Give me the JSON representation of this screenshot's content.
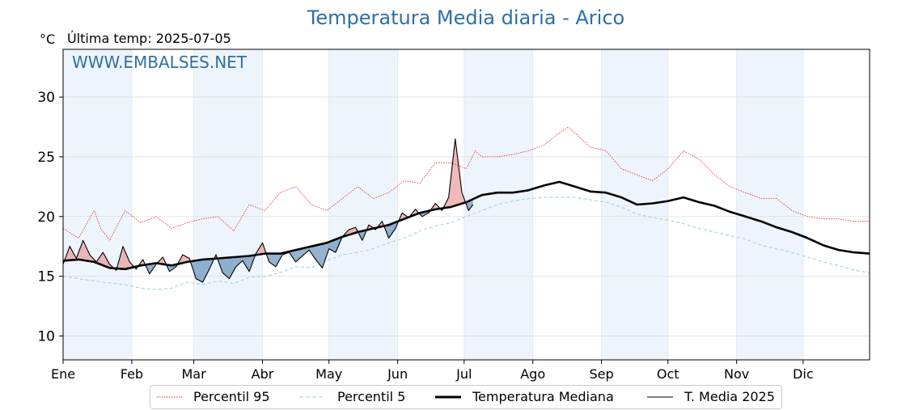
{
  "title": "Temperatura Media diaria - Arico",
  "unit_label": "°C",
  "last_temp": "Última temp: 2025-07-05",
  "watermark": "WWW.EMBALSES.NET",
  "colors": {
    "title": "#2e6fa5",
    "p95": "#e0201c",
    "p5": "#9fd1e4",
    "median": "#000000",
    "current": "#000000",
    "above_fill": "#e88a8a",
    "below_fill": "#5a8ab6",
    "band": "#eef4fb"
  },
  "chart_data": {
    "type": "line",
    "title": "Temperatura Media diaria - Arico",
    "ylabel": "°C",
    "xlabel": "",
    "ylim": [
      8,
      34
    ],
    "yticks": [
      "10",
      "15",
      "20",
      "25",
      "30"
    ],
    "month_ticks": [
      "Ene",
      "Feb",
      "Mar",
      "Abr",
      "May",
      "Jun",
      "Jul",
      "Ago",
      "Sep",
      "Oct",
      "Nov",
      "Dic"
    ],
    "grid": true,
    "legend_position": "bottom",
    "series": [
      {
        "name": "Percentil 95",
        "style": "dotted-red",
        "x": [
          1,
          8,
          15,
          18,
          22,
          29,
          36,
          43,
          50,
          57,
          64,
          71,
          78,
          85,
          92,
          99,
          106,
          113,
          120,
          127,
          134,
          141,
          148,
          155,
          162,
          169,
          176,
          183,
          187,
          190,
          197,
          204,
          211,
          218,
          225,
          229,
          232,
          239,
          246,
          253,
          260,
          267,
          274,
          281,
          288,
          295,
          302,
          309,
          316,
          323,
          330,
          337,
          344,
          351,
          358,
          365
        ],
        "values": [
          19.0,
          18.2,
          20.5,
          19.0,
          18.0,
          20.5,
          19.5,
          20.0,
          19.0,
          19.5,
          19.8,
          20.0,
          18.8,
          21.0,
          20.5,
          22.0,
          22.5,
          21.0,
          20.5,
          21.5,
          22.5,
          21.5,
          22.0,
          23.0,
          22.8,
          24.5,
          24.5,
          24.0,
          25.5,
          25.0,
          25.0,
          25.2,
          25.5,
          26.0,
          27.0,
          27.5,
          27.0,
          25.8,
          25.5,
          24.0,
          23.5,
          23.0,
          24.0,
          25.5,
          24.8,
          23.5,
          22.5,
          22.0,
          21.5,
          21.5,
          20.5,
          20.0,
          19.8,
          19.8,
          19.6,
          19.6
        ]
      },
      {
        "name": "Percentil 5",
        "style": "dashed-blue",
        "x": [
          1,
          15,
          29,
          36,
          43,
          50,
          57,
          64,
          71,
          78,
          85,
          92,
          99,
          106,
          113,
          120,
          127,
          134,
          141,
          148,
          155,
          162,
          169,
          176,
          183,
          190,
          197,
          204,
          211,
          218,
          225,
          232,
          239,
          246,
          253,
          260,
          267,
          274,
          281,
          288,
          295,
          302,
          309,
          316,
          323,
          330,
          337,
          344,
          351,
          358,
          365
        ],
        "values": [
          15.0,
          14.6,
          14.3,
          14.0,
          13.9,
          14.0,
          14.5,
          14.3,
          14.6,
          14.4,
          14.9,
          15.0,
          15.3,
          15.8,
          15.7,
          16.3,
          16.8,
          17.0,
          17.3,
          17.8,
          18.2,
          18.8,
          19.2,
          19.5,
          20.0,
          20.5,
          21.0,
          21.3,
          21.5,
          21.6,
          21.6,
          21.6,
          21.4,
          21.2,
          20.8,
          20.2,
          19.9,
          19.7,
          19.4,
          19.0,
          18.7,
          18.4,
          18.1,
          17.6,
          17.3,
          17.0,
          16.6,
          16.2,
          15.9,
          15.5,
          15.3
        ]
      },
      {
        "name": "Temperatura Mediana",
        "style": "thick-black",
        "x": [
          1,
          8,
          15,
          22,
          29,
          36,
          43,
          50,
          57,
          64,
          71,
          78,
          85,
          92,
          99,
          106,
          113,
          120,
          127,
          134,
          141,
          148,
          155,
          162,
          169,
          176,
          183,
          190,
          197,
          204,
          211,
          218,
          225,
          232,
          239,
          246,
          253,
          260,
          267,
          274,
          281,
          288,
          295,
          302,
          309,
          316,
          323,
          330,
          337,
          344,
          351,
          358,
          365
        ],
        "values": [
          16.3,
          16.4,
          16.2,
          15.7,
          15.6,
          15.9,
          16.1,
          15.9,
          16.2,
          16.4,
          16.5,
          16.6,
          16.7,
          16.9,
          16.9,
          17.2,
          17.5,
          17.8,
          18.3,
          18.7,
          19.0,
          19.3,
          19.8,
          20.3,
          20.6,
          20.8,
          21.2,
          21.8,
          22.0,
          22.0,
          22.2,
          22.6,
          22.9,
          22.5,
          22.1,
          22.0,
          21.6,
          21.0,
          21.1,
          21.3,
          21.6,
          21.2,
          20.9,
          20.4,
          20.0,
          19.6,
          19.1,
          18.7,
          18.2,
          17.6,
          17.2,
          17.0,
          16.9
        ]
      },
      {
        "name": "T. Media 2025",
        "style": "thin-black",
        "x": [
          1,
          4,
          7,
          10,
          13,
          16,
          19,
          22,
          25,
          28,
          31,
          34,
          37,
          40,
          43,
          46,
          49,
          52,
          55,
          58,
          61,
          64,
          67,
          70,
          73,
          76,
          79,
          82,
          85,
          88,
          91,
          94,
          97,
          100,
          103,
          106,
          109,
          112,
          115,
          118,
          121,
          124,
          127,
          130,
          133,
          136,
          139,
          142,
          145,
          148,
          151,
          154,
          157,
          160,
          163,
          166,
          169,
          172,
          175,
          178,
          181,
          184,
          186
        ],
        "values": [
          16.0,
          17.5,
          16.5,
          18.0,
          16.8,
          16.2,
          17.0,
          16.0,
          15.5,
          17.5,
          16.2,
          15.6,
          16.4,
          15.2,
          16.0,
          16.6,
          15.4,
          15.8,
          16.8,
          16.5,
          14.8,
          14.5,
          15.6,
          16.8,
          15.3,
          14.8,
          15.8,
          16.3,
          15.4,
          16.9,
          17.8,
          16.2,
          15.8,
          16.8,
          17.0,
          16.2,
          16.7,
          17.2,
          16.4,
          15.7,
          17.3,
          17.0,
          18.3,
          18.9,
          19.1,
          18.0,
          19.3,
          18.9,
          19.6,
          18.2,
          19.0,
          20.3,
          19.9,
          20.6,
          20.0,
          20.3,
          21.1,
          20.5,
          21.6,
          26.5,
          22.0,
          20.5,
          21.0
        ]
      }
    ]
  }
}
